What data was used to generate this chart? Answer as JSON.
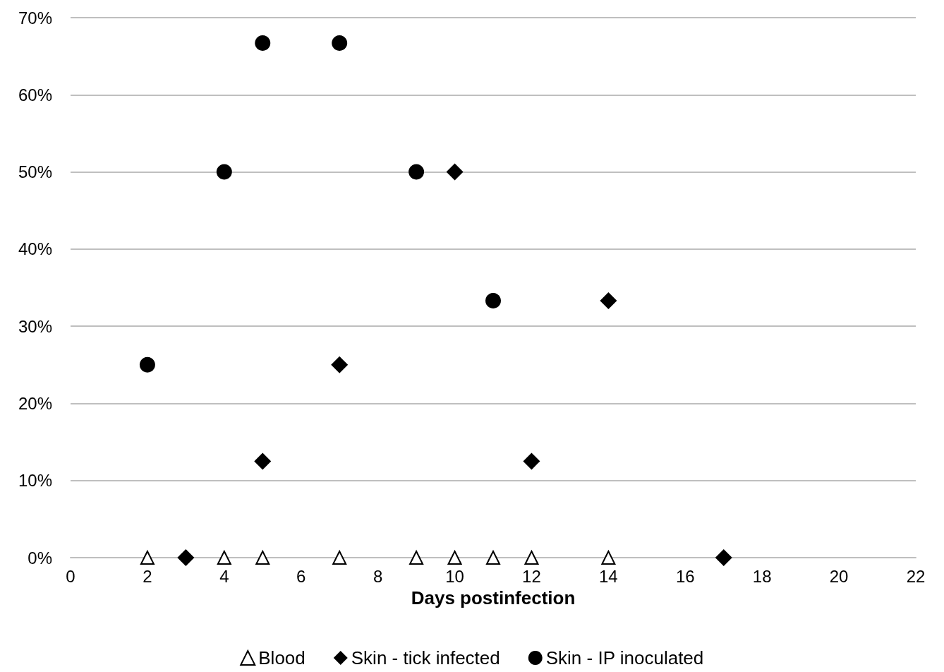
{
  "chart_data": {
    "type": "scatter",
    "xlabel": "Days postinfection",
    "xlim": [
      0,
      22
    ],
    "xticks": [
      0,
      2,
      4,
      6,
      8,
      10,
      12,
      14,
      16,
      18,
      20,
      22
    ],
    "ylim": [
      0,
      70
    ],
    "yticks": [
      {
        "value": 0,
        "label": "0%"
      },
      {
        "value": 10,
        "label": "10%"
      },
      {
        "value": 20,
        "label": "20%"
      },
      {
        "value": 30,
        "label": "30%"
      },
      {
        "value": 40,
        "label": "40%"
      },
      {
        "value": 50,
        "label": "50%"
      },
      {
        "value": 60,
        "label": "60%"
      },
      {
        "value": 70,
        "label": "70%"
      }
    ],
    "grid": "y",
    "legend": "bottom",
    "series": [
      {
        "name": "Blood",
        "color": "#000000",
        "marker": "triangle",
        "x": [
          2,
          4,
          5,
          7,
          9,
          10,
          11,
          12,
          14
        ],
        "values": [
          0,
          0,
          0,
          0,
          0,
          0,
          0,
          0,
          0
        ]
      },
      {
        "name": "Skin - tick infected",
        "color": "#000000",
        "marker": "diamond",
        "x": [
          3,
          5,
          7,
          10,
          12,
          14,
          17
        ],
        "values": [
          0,
          12.5,
          25,
          50,
          12.5,
          33.3,
          0
        ]
      },
      {
        "name": "Skin - IP inoculated",
        "color": "#000000",
        "marker": "circle",
        "x": [
          2,
          4,
          5,
          7,
          9,
          11
        ],
        "values": [
          25,
          50,
          66.7,
          66.7,
          50,
          33.3
        ]
      }
    ]
  }
}
